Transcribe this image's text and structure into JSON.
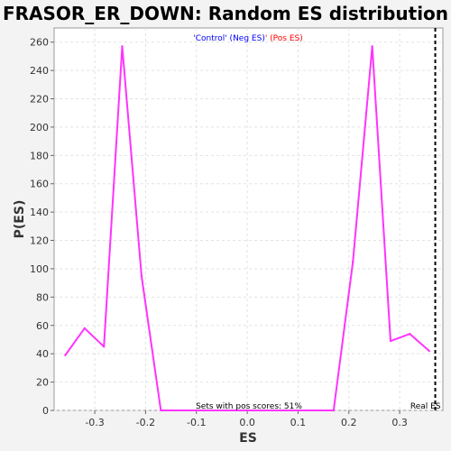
{
  "chart_data": {
    "type": "line",
    "title": "FRASOR_ER_DOWN: Random ES distribution",
    "xlabel": "ES",
    "ylabel": "P(ES)",
    "xlim": [
      -0.38,
      0.385
    ],
    "ylim": [
      0,
      270
    ],
    "xticks": [
      -0.3,
      -0.2,
      -0.1,
      0.0,
      0.1,
      0.2,
      0.3
    ],
    "xtick_labels": [
      "-0.3",
      "-0.2",
      "-0.1",
      "0.0",
      "0.1",
      "0.2",
      "0.3"
    ],
    "yticks": [
      0,
      20,
      40,
      60,
      80,
      100,
      120,
      140,
      160,
      180,
      200,
      220,
      240,
      260
    ],
    "grid": true,
    "legend": {
      "position": "top-center",
      "neg_label": "'Control' (Neg ES)",
      "sep": "' ",
      "pos_label": "(Pos ES)",
      "neg_color": "#0000ff",
      "pos_color": "#ff0000"
    },
    "series": [
      {
        "color": "#ff33ff",
        "x": [
          -0.358,
          -0.32,
          -0.282,
          -0.246,
          -0.208,
          -0.17,
          0.17,
          0.208,
          0.246,
          0.282,
          0.32,
          0.358
        ],
        "y": [
          39,
          58,
          45,
          257,
          95,
          0,
          0,
          105,
          257,
          49,
          54,
          42
        ]
      }
    ],
    "annotations": [
      {
        "text": "Sets with pos scores: 51%",
        "color": "#000000"
      },
      {
        "text": "Real ES",
        "color": "#000000"
      }
    ],
    "real_es": 0.37
  }
}
